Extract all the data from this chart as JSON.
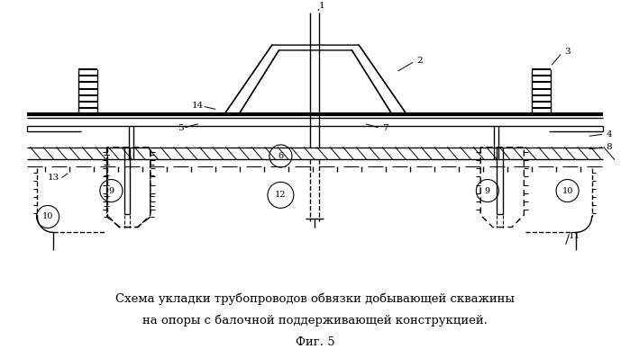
{
  "bg_color": "#ffffff",
  "line_color": "#000000",
  "fig_width": 6.99,
  "fig_height": 3.98,
  "dpi": 100,
  "title_line1": "Схема укладки трубопроводов обвязки добывающей скважины",
  "title_line2": "на опоры с балочной поддерживающей конструкцией.",
  "fig_label": "Фиг. 5"
}
